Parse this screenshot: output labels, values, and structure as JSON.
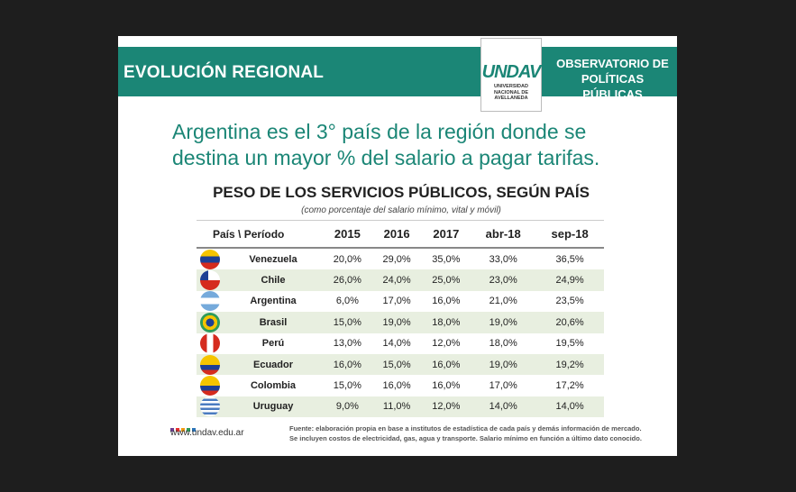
{
  "header": {
    "section_title": "EVOLUCIÓN REGIONAL",
    "observatorio_line1": "OBSERVATORIO DE",
    "observatorio_line2": "POLÍTICAS PÚBLICAS",
    "logo_text": "UNDAV",
    "logo_sub": "UNIVERSIDAD NACIONAL DE AVELLANEDA"
  },
  "headline": {
    "line1": "Argentina es el 3° país de la región donde se",
    "line2": "destina un mayor % del salario a pagar tarifas."
  },
  "table": {
    "title": "PESO DE LOS SERVICIOS PÚBLICOS, SEGÚN PAÍS",
    "subtitle": "(como porcentaje del salario mínimo, vital y móvil)",
    "columns": [
      "País \\ Período",
      "2015",
      "2016",
      "2017",
      "abr-18",
      "sep-18"
    ],
    "rows": [
      {
        "country": "Venezuela",
        "values": [
          "20,0%",
          "29,0%",
          "35,0%",
          "33,0%",
          "36,5%"
        ]
      },
      {
        "country": "Chile",
        "values": [
          "26,0%",
          "24,0%",
          "25,0%",
          "23,0%",
          "24,9%"
        ]
      },
      {
        "country": "Argentina",
        "values": [
          "6,0%",
          "17,0%",
          "16,0%",
          "21,0%",
          "23,5%"
        ]
      },
      {
        "country": "Brasil",
        "values": [
          "15,0%",
          "19,0%",
          "18,0%",
          "19,0%",
          "20,6%"
        ]
      },
      {
        "country": "Perú",
        "values": [
          "13,0%",
          "14,0%",
          "12,0%",
          "18,0%",
          "19,5%"
        ]
      },
      {
        "country": "Ecuador",
        "values": [
          "16,0%",
          "15,0%",
          "16,0%",
          "19,0%",
          "19,2%"
        ]
      },
      {
        "country": "Colombia",
        "values": [
          "15,0%",
          "16,0%",
          "16,0%",
          "17,0%",
          "17,2%"
        ]
      },
      {
        "country": "Uruguay",
        "values": [
          "9,0%",
          "11,0%",
          "12,0%",
          "14,0%",
          "14,0%"
        ]
      }
    ]
  },
  "footer": {
    "url": "www.undav.edu.ar",
    "fuente_line1": "Fuente: elaboración propia en base a institutos de estadística de cada país y demás información de mercado.",
    "fuente_line2": "Se incluyen costos de electricidad, gas, agua y transporte. Salario mínimo en función a último dato conocido."
  },
  "colors": {
    "brand_teal": "#1b8676",
    "alt_row": "#e8efe0",
    "dots": [
      "#6c3d91",
      "#e8312f",
      "#f39c12",
      "#2e9c5a",
      "#2b74b8"
    ]
  }
}
